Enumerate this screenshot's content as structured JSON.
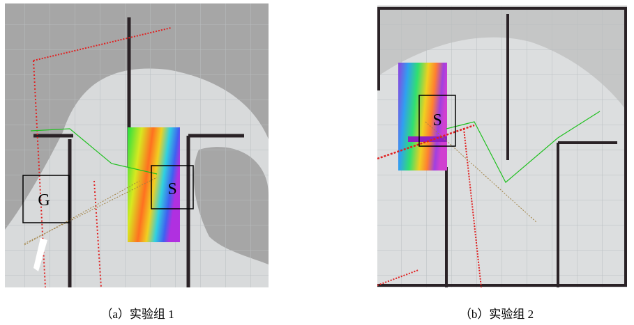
{
  "panels": [
    {
      "labels": [
        "G",
        "S"
      ],
      "caption": "（a）实验组 1"
    },
    {
      "labels": [
        "S"
      ],
      "caption": "（b）实验组 2"
    }
  ]
}
